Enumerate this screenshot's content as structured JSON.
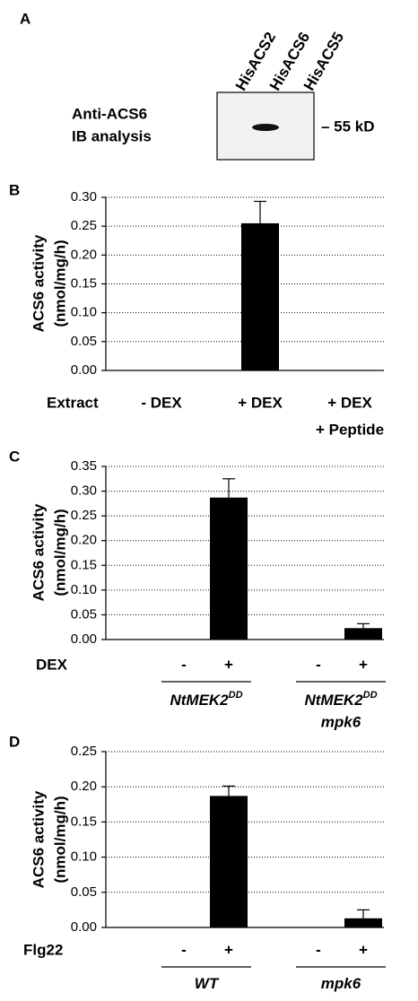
{
  "panel_a": {
    "letter": "A",
    "lanes": [
      "HisACS2",
      "HisACS6",
      "HisACS5"
    ],
    "blot_label": [
      "Anti-ACS6",
      "IB analysis"
    ],
    "marker": "– 55 kD"
  },
  "chart_data": [
    {
      "type": "bar",
      "letter": "B",
      "y_label": [
        "ACS6 activity",
        "(nmol/mg/h)"
      ],
      "row_label": "Extract",
      "categories": [
        "- DEX",
        "+ DEX",
        "+ DEX"
      ],
      "category_second_lines": [
        null,
        null,
        "+ Peptide"
      ],
      "values": [
        0,
        0.255,
        0
      ],
      "errors": [
        null,
        0.038,
        null
      ],
      "color": "#000000",
      "ylim": [
        0,
        0.3
      ],
      "yticks": [
        {
          "value": 0,
          "label": "0.00"
        },
        {
          "value": 0.05,
          "label": "0.05"
        },
        {
          "value": 0.1,
          "label": "0.10"
        },
        {
          "value": 0.15,
          "label": "0.15"
        },
        {
          "value": 0.2,
          "label": "0.20"
        },
        {
          "value": 0.25,
          "label": "0.25"
        },
        {
          "value": 0.3,
          "label": "0.30"
        }
      ],
      "grid": true
    },
    {
      "type": "bar",
      "letter": "C",
      "y_label": [
        "ACS6 activity",
        "(nmol/mg/h)"
      ],
      "row_label": "DEX",
      "categories": [
        "-",
        "+",
        "-",
        "+"
      ],
      "groups": [
        {
          "label": "NtMEK2",
          "sup": "DD",
          "line2": null
        },
        {
          "label": "NtMEK2",
          "sup": "DD",
          "line2": "mpk6"
        }
      ],
      "values": [
        0,
        0.287,
        0,
        0.023
      ],
      "errors": [
        null,
        0.038,
        null,
        0.009
      ],
      "color": "#000000",
      "ylim": [
        0,
        0.35
      ],
      "yticks": [
        {
          "value": 0,
          "label": "0.00"
        },
        {
          "value": 0.05,
          "label": "0.05"
        },
        {
          "value": 0.1,
          "label": "0.10"
        },
        {
          "value": 0.15,
          "label": "0.15"
        },
        {
          "value": 0.2,
          "label": "0.20"
        },
        {
          "value": 0.25,
          "label": "0.25"
        },
        {
          "value": 0.3,
          "label": "0.30"
        },
        {
          "value": 0.35,
          "label": "0.35"
        }
      ],
      "grid": true
    },
    {
      "type": "bar",
      "letter": "D",
      "y_label": [
        "ACS6 activity",
        "(nmol/mg/h)"
      ],
      "row_label": "Flg22",
      "categories": [
        "-",
        "+",
        "-",
        "+"
      ],
      "groups": [
        {
          "label": "WT",
          "sup": null,
          "line2": null
        },
        {
          "label": "mpk6",
          "sup": null,
          "line2": null
        }
      ],
      "values": [
        0,
        0.187,
        0,
        0.013
      ],
      "errors": [
        null,
        0.014,
        null,
        0.012
      ],
      "color": "#000000",
      "ylim": [
        0,
        0.25
      ],
      "yticks": [
        {
          "value": 0,
          "label": "0.00"
        },
        {
          "value": 0.05,
          "label": "0.05"
        },
        {
          "value": 0.1,
          "label": "0.10"
        },
        {
          "value": 0.15,
          "label": "0.15"
        },
        {
          "value": 0.2,
          "label": "0.20"
        },
        {
          "value": 0.25,
          "label": "0.25"
        }
      ],
      "grid": true
    }
  ]
}
